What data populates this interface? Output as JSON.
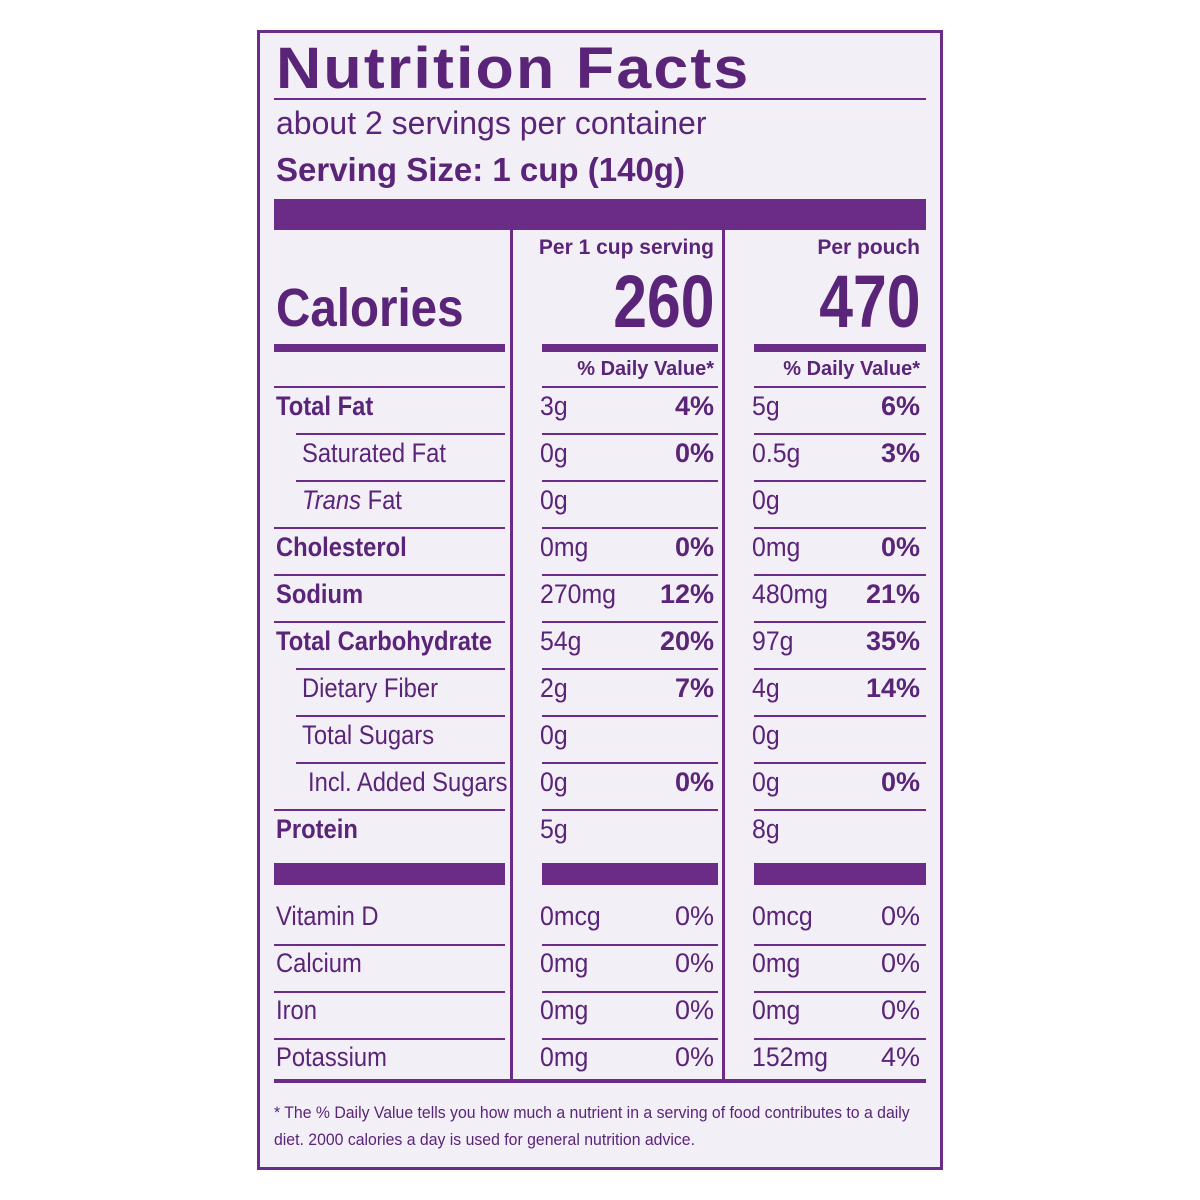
{
  "title": "Nutrition Facts",
  "servings_per_container": "about 2 servings per container",
  "serving_size": "Serving Size: 1 cup (140g)",
  "columns": [
    {
      "header": "Per 1 cup serving",
      "calories": "260",
      "dv_header": "% Daily Value*"
    },
    {
      "header": "Per pouch",
      "calories": "470",
      "dv_header": "% Daily Value*"
    }
  ],
  "calories_label": "Calories",
  "nutrients": [
    {
      "label": "Total Fat",
      "style": "bold",
      "indent": 0,
      "serving": {
        "amount": "3g",
        "dv": "4%"
      },
      "pouch": {
        "amount": "5g",
        "dv": "6%"
      }
    },
    {
      "label": "Saturated Fat",
      "style": "normal",
      "indent": 1,
      "serving": {
        "amount": "0g",
        "dv": "0%"
      },
      "pouch": {
        "amount": "0.5g",
        "dv": "3%"
      }
    },
    {
      "label_italic": "Trans",
      "label": " Fat",
      "style": "normal",
      "indent": 1,
      "serving": {
        "amount": "0g",
        "dv": ""
      },
      "pouch": {
        "amount": "0g",
        "dv": ""
      }
    },
    {
      "label": "Cholesterol",
      "style": "bold",
      "indent": 0,
      "serving": {
        "amount": "0mg",
        "dv": "0%"
      },
      "pouch": {
        "amount": "0mg",
        "dv": "0%"
      }
    },
    {
      "label": "Sodium",
      "style": "bold",
      "indent": 0,
      "serving": {
        "amount": "270mg",
        "dv": "12%"
      },
      "pouch": {
        "amount": "480mg",
        "dv": "21%"
      }
    },
    {
      "label": "Total Carbohydrate",
      "style": "bold",
      "indent": 0,
      "serving": {
        "amount": "54g",
        "dv": "20%"
      },
      "pouch": {
        "amount": "97g",
        "dv": "35%"
      }
    },
    {
      "label": "Dietary Fiber",
      "style": "normal",
      "indent": 1,
      "serving": {
        "amount": "2g",
        "dv": "7%"
      },
      "pouch": {
        "amount": "4g",
        "dv": "14%"
      }
    },
    {
      "label": "Total Sugars",
      "style": "normal",
      "indent": 1,
      "serving": {
        "amount": "0g",
        "dv": ""
      },
      "pouch": {
        "amount": "0g",
        "dv": ""
      }
    },
    {
      "label": "Incl. Added Sugars",
      "style": "normal",
      "indent": 2,
      "serving": {
        "amount": "0g",
        "dv": "0%"
      },
      "pouch": {
        "amount": "0g",
        "dv": "0%"
      }
    },
    {
      "label": "Protein",
      "style": "bold",
      "indent": 0,
      "serving": {
        "amount": "5g",
        "dv": ""
      },
      "pouch": {
        "amount": "8g",
        "dv": ""
      }
    }
  ],
  "vitamins": [
    {
      "label": "Vitamin D",
      "serving": {
        "amount": "0mcg",
        "dv": "0%"
      },
      "pouch": {
        "amount": "0mcg",
        "dv": "0%"
      }
    },
    {
      "label": "Calcium",
      "serving": {
        "amount": "0mg",
        "dv": "0%"
      },
      "pouch": {
        "amount": "0mg",
        "dv": "0%"
      }
    },
    {
      "label": "Iron",
      "serving": {
        "amount": "0mg",
        "dv": "0%"
      },
      "pouch": {
        "amount": "0mg",
        "dv": "0%"
      }
    },
    {
      "label": "Potassium",
      "serving": {
        "amount": "0mg",
        "dv": "0%"
      },
      "pouch": {
        "amount": "152mg",
        "dv": "4%"
      }
    }
  ],
  "footnote": "* The % Daily Value tells you how much a nutrient in a serving of food contributes to a daily diet. 2000 calories a day is used for general nutrition advice.",
  "colors": {
    "ink": "#6a2c86",
    "background": "#f3eff6"
  }
}
